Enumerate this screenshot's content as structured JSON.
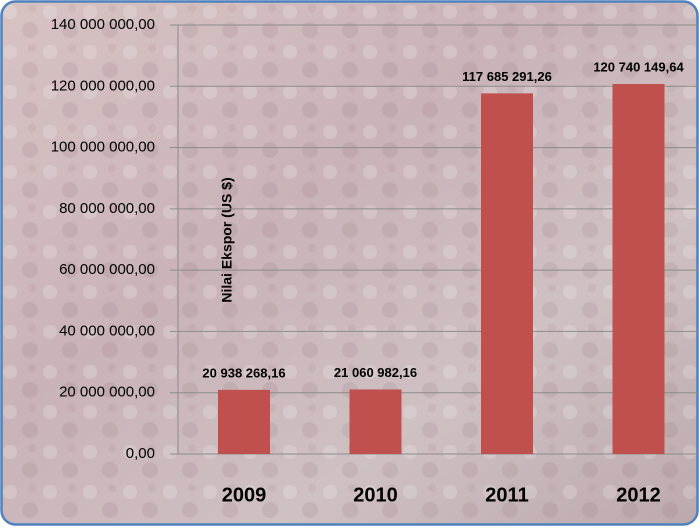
{
  "chart_data": {
    "type": "bar",
    "y_label": "Nilai Ekspor  (US $)",
    "categories": [
      "2009",
      "2010",
      "2011",
      "2012"
    ],
    "values": [
      20938268.16,
      21060982.16,
      117685291.26,
      120740149.64
    ],
    "value_labels": [
      "20 938 268,16",
      "21 060 982,16",
      "117 685 291,26",
      "120 740 149,64"
    ],
    "color": "#c0504d",
    "ylim": [
      0,
      140000000
    ],
    "yticks": [
      {
        "value": 0,
        "label": "0,00"
      },
      {
        "value": 20000000,
        "label": "20 000 000,00"
      },
      {
        "value": 40000000,
        "label": "40 000 000,00"
      },
      {
        "value": 60000000,
        "label": "60 000 000,00"
      },
      {
        "value": 80000000,
        "label": "80 000 000,00"
      },
      {
        "value": 100000000,
        "label": "100 000 000,00"
      },
      {
        "value": 120000000,
        "label": "120 000 000,00"
      },
      {
        "value": 140000000,
        "label": "140 000 000,00"
      }
    ],
    "grid": true
  }
}
